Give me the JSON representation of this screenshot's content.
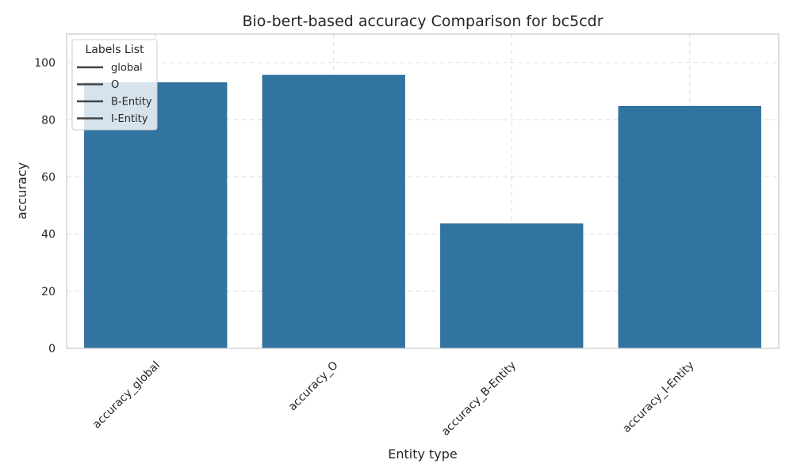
{
  "chart_data": {
    "type": "bar",
    "title": "Bio-bert-based  accuracy Comparison for bc5cdr",
    "xlabel": "Entity type",
    "ylabel": "accuracy",
    "categories": [
      "accuracy_global",
      "accuracy_O",
      "accuracy_B-Entity",
      "accuracy_I-Entity"
    ],
    "values": [
      93.0,
      95.6,
      43.6,
      84.7
    ],
    "ylim": [
      0,
      110
    ],
    "yticks": [
      0,
      20,
      40,
      60,
      80,
      100
    ],
    "grid": true,
    "bar_color": "#3274a1",
    "legend": {
      "title": "Labels List",
      "placement": "top-left",
      "entries": [
        "global",
        "O",
        "B-Entity",
        "I-Entity"
      ],
      "line_color": "#444444"
    }
  }
}
